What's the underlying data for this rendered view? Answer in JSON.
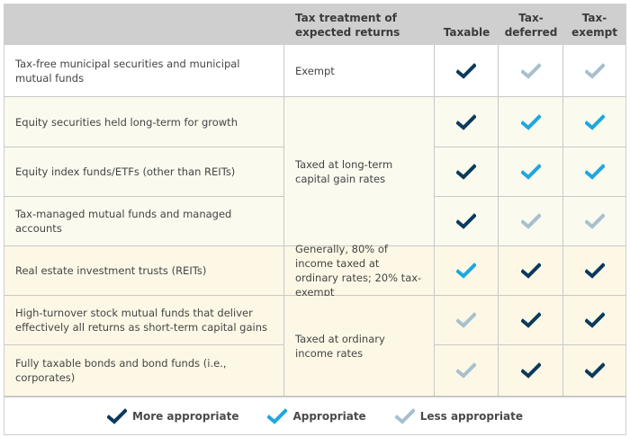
{
  "colors": {
    "more_appropriate": "#0c3a5c",
    "appropriate": "#1ea7e1",
    "less_appropriate": "#a7c0cd",
    "header_bg": "#cfcfcf",
    "row_white": "#ffffff",
    "row_cream_light": "#fafaef",
    "row_cream_warm": "#fdf8e6"
  },
  "header": {
    "investment": "",
    "treatment": "Tax treatment of expected returns",
    "taxable": "Taxable",
    "tax_deferred": "Tax-deferred",
    "tax_exempt": "Tax-exempt"
  },
  "rows": [
    {
      "investment": "Tax-free municipal securities and municipal mutual funds",
      "treatment": "Exempt",
      "taxable": "more",
      "tax_deferred": "less",
      "tax_exempt": "less"
    },
    {
      "investment": "Equity securities  held long-term for growth",
      "treatment": "Taxed at long-term capital gain rates",
      "taxable": "more",
      "tax_deferred": "appropriate",
      "tax_exempt": "appropriate"
    },
    {
      "investment": "Equity index funds/ETFs (other than REITs)",
      "taxable": "more",
      "tax_deferred": "appropriate",
      "tax_exempt": "appropriate"
    },
    {
      "investment": "Tax-managed mutual funds and managed accounts",
      "taxable": "more",
      "tax_deferred": "less",
      "tax_exempt": "less"
    },
    {
      "investment": "Real estate investment trusts (REITs)",
      "treatment": "Generally, 80% of income taxed at ordinary rates; 20% tax-exempt",
      "taxable": "appropriate",
      "tax_deferred": "more",
      "tax_exempt": "more"
    },
    {
      "investment": "High-turnover stock mutual funds that deliver effectively all returns as short-term capital gains",
      "treatment": "Taxed at ordinary income rates",
      "taxable": "less",
      "tax_deferred": "more",
      "tax_exempt": "more"
    },
    {
      "investment": "Fully taxable bonds and bond funds (i.e., corporates)",
      "taxable": "less",
      "tax_deferred": "more",
      "tax_exempt": "more"
    }
  ],
  "legend": {
    "more": "More appropriate",
    "appropriate": "Appropriate",
    "less": "Less appropriate"
  }
}
